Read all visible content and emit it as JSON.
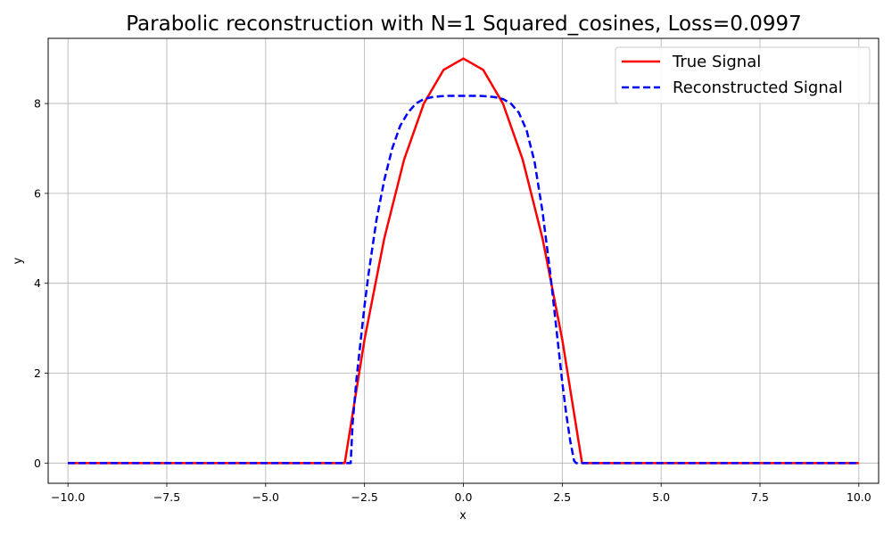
{
  "chart_data": {
    "type": "line",
    "title": "Parabolic reconstruction with N=1 Squared_cosines, Loss=0.0997",
    "xlabel": "x",
    "ylabel": "y",
    "xlim": [
      -10.5,
      10.5
    ],
    "ylim": [
      -0.45,
      9.45
    ],
    "xticks": [
      -10.0,
      -7.5,
      -5.0,
      -2.5,
      0.0,
      2.5,
      5.0,
      7.5,
      10.0
    ],
    "xtick_labels": [
      "−10.0",
      "−7.5",
      "−5.0",
      "−2.5",
      "0.0",
      "2.5",
      "5.0",
      "7.5",
      "10.0"
    ],
    "yticks": [
      0,
      2,
      4,
      6,
      8
    ],
    "ytick_labels": [
      "0",
      "2",
      "4",
      "6",
      "8"
    ],
    "grid": true,
    "legend_position": "top-right",
    "series": [
      {
        "name": "True Signal",
        "color": "#ff0000",
        "style": "solid",
        "x": [
          -10,
          -3,
          -2.5,
          -2,
          -1.5,
          -1,
          -0.5,
          0,
          0.5,
          1,
          1.5,
          2,
          2.5,
          3,
          10
        ],
        "y": [
          0,
          0,
          2.75,
          5.0,
          6.75,
          8.0,
          8.75,
          9.0,
          8.75,
          8.0,
          6.75,
          5.0,
          2.75,
          0,
          0
        ]
      },
      {
        "name": "Reconstructed Signal",
        "color": "#0000ff",
        "style": "dashed",
        "x": [
          -10,
          -2.85,
          -2.8,
          -2.7,
          -2.6,
          -2.5,
          -2.4,
          -2.3,
          -2.2,
          -2.0,
          -1.8,
          -1.6,
          -1.4,
          -1.2,
          -1.0,
          -0.8,
          -0.6,
          -0.4,
          -0.2,
          0,
          0.2,
          0.4,
          0.6,
          0.8,
          1.0,
          1.2,
          1.4,
          1.6,
          1.8,
          2.0,
          2.2,
          2.3,
          2.4,
          2.5,
          2.6,
          2.7,
          2.8,
          2.85,
          10
        ],
        "y": [
          0,
          0,
          0.9,
          1.9,
          2.7,
          3.5,
          4.2,
          4.8,
          5.4,
          6.3,
          7.0,
          7.5,
          7.8,
          8.0,
          8.1,
          8.14,
          8.16,
          8.17,
          8.17,
          8.17,
          8.17,
          8.17,
          8.16,
          8.14,
          8.1,
          8.0,
          7.8,
          7.4,
          6.7,
          5.6,
          4.2,
          3.4,
          2.6,
          1.8,
          1.1,
          0.5,
          0.05,
          0,
          0
        ]
      }
    ]
  }
}
